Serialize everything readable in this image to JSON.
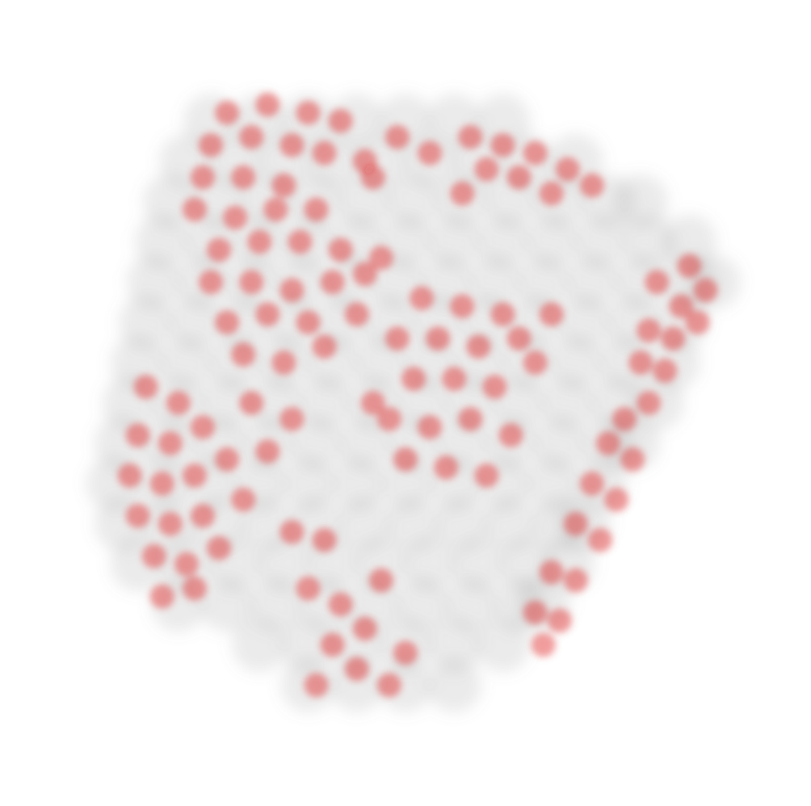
{
  "chart_data": {
    "type": "scatter",
    "xlim": [
      0,
      100
    ],
    "ylim": [
      0,
      100
    ],
    "tick_labels": false,
    "series": [
      {
        "color": "#808080",
        "x": [
          26,
          32,
          38,
          44,
          50,
          56,
          62,
          23,
          29,
          35,
          41,
          47,
          53,
          59,
          65,
          71,
          21,
          27,
          33,
          39,
          45,
          51,
          57,
          63,
          69,
          75,
          79,
          20,
          26,
          32,
          38,
          44,
          50,
          56,
          62,
          68,
          74,
          80,
          85,
          19,
          25,
          31,
          37,
          43,
          49,
          55,
          61,
          67,
          73,
          79,
          85,
          88,
          18,
          24,
          30,
          36,
          42,
          48,
          54,
          60,
          66,
          72,
          78,
          84,
          17,
          23,
          29,
          35,
          41,
          47,
          53,
          59,
          65,
          71,
          77,
          83,
          16,
          22,
          28,
          34,
          40,
          46,
          52,
          58,
          64,
          70,
          76,
          81,
          15,
          21,
          27,
          33,
          39,
          45,
          51,
          57,
          63,
          69,
          75,
          78,
          14,
          20,
          26,
          32,
          38,
          44,
          50,
          56,
          62,
          68,
          74,
          15,
          21,
          27,
          33,
          39,
          45,
          51,
          57,
          63,
          69,
          72,
          17,
          23,
          29,
          35,
          41,
          47,
          53,
          59,
          65,
          70,
          22,
          28,
          34,
          40,
          46,
          52,
          58,
          64,
          67,
          32,
          38,
          44,
          50,
          56,
          62,
          38,
          44,
          50,
          56
        ],
        "values": [
          85,
          85,
          85,
          85,
          85,
          85,
          85,
          80,
          80,
          80,
          80,
          80,
          80,
          80,
          80,
          80,
          75,
          75,
          75,
          75,
          75,
          75,
          75,
          75,
          75,
          75,
          75,
          70,
          70,
          70,
          70,
          70,
          70,
          70,
          70,
          70,
          70,
          70,
          70,
          65,
          65,
          65,
          65,
          65,
          65,
          65,
          65,
          65,
          65,
          65,
          65,
          65,
          60,
          60,
          60,
          60,
          60,
          60,
          60,
          60,
          60,
          60,
          60,
          60,
          55,
          55,
          55,
          55,
          55,
          55,
          55,
          55,
          55,
          55,
          55,
          55,
          50,
          50,
          50,
          50,
          50,
          50,
          50,
          50,
          50,
          50,
          50,
          50,
          45,
          45,
          45,
          45,
          45,
          45,
          45,
          45,
          45,
          45,
          45,
          45,
          40,
          40,
          40,
          40,
          40,
          40,
          40,
          40,
          40,
          40,
          40,
          35,
          35,
          35,
          35,
          35,
          35,
          35,
          35,
          35,
          35,
          35,
          30,
          30,
          30,
          30,
          30,
          30,
          30,
          30,
          30,
          30,
          25,
          25,
          25,
          25,
          25,
          25,
          25,
          25,
          25,
          20,
          20,
          20,
          20,
          20,
          20,
          15,
          15,
          15,
          15
        ]
      },
      {
        "color": "#dd1111",
        "x": [
          28,
          33,
          38,
          42,
          26,
          31,
          36,
          40,
          45,
          25,
          30,
          35,
          24,
          29,
          34,
          39,
          27,
          32,
          37,
          42,
          26,
          31,
          36,
          41,
          45,
          28,
          33,
          38,
          30,
          35,
          40,
          44,
          47,
          58,
          62,
          66,
          70,
          73,
          60,
          64,
          68,
          57,
          85,
          87,
          84,
          81,
          86,
          83,
          80,
          82,
          79,
          80,
          77,
          78,
          75,
          76,
          73,
          74,
          71,
          71,
          68,
          69,
          66,
          67,
          52,
          57,
          62,
          49,
          54,
          59,
          64,
          51,
          56,
          61,
          48,
          53,
          58,
          63,
          50,
          55,
          60,
          46,
          66,
          68,
          18,
          22,
          17,
          21,
          25,
          16,
          20,
          24,
          28,
          17,
          21,
          25,
          19,
          23,
          27,
          20,
          24,
          30,
          40,
          38,
          42,
          45,
          41,
          44,
          39,
          47,
          36,
          50,
          48,
          31,
          36,
          33,
          49,
          53,
          46
        ],
        "values": [
          86,
          87,
          86,
          85,
          82,
          83,
          82,
          81,
          80,
          78,
          78,
          77,
          74,
          73,
          74,
          74,
          69,
          70,
          70,
          69,
          65,
          65,
          64,
          65,
          66,
          60,
          61,
          60,
          56,
          55,
          57,
          61,
          68,
          83,
          82,
          81,
          79,
          77,
          79,
          78,
          76,
          76,
          67,
          64,
          62,
          65,
          60,
          58,
          59,
          54,
          55,
          50,
          48,
          43,
          45,
          38,
          40,
          33,
          35,
          28,
          29,
          23,
          24,
          20,
          63,
          62,
          61,
          58,
          58,
          57,
          58,
          53,
          53,
          52,
          48,
          47,
          48,
          46,
          43,
          42,
          41,
          50,
          55,
          61,
          52,
          50,
          46,
          45,
          47,
          41,
          40,
          41,
          43,
          36,
          35,
          36,
          31,
          30,
          32,
          26,
          27,
          38,
          33,
          27,
          25,
          22,
          20,
          17,
          15,
          28,
          34,
          19,
          15,
          50,
          48,
          44,
          83,
          81,
          78
        ]
      }
    ]
  }
}
